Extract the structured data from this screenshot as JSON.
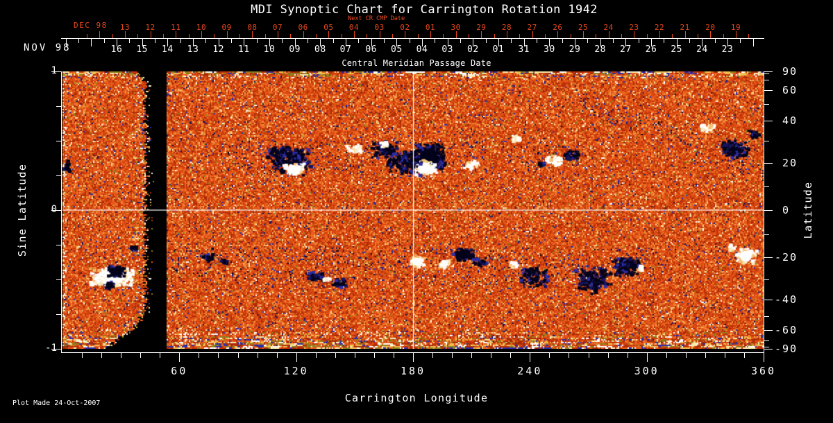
{
  "title": "MDI Synoptic Chart for Carrington Rotation 1942",
  "footer": {
    "plot_made": "Plot Made 24-Oct-2007"
  },
  "colors": {
    "background": "#000000",
    "foreground": "#ffffff",
    "accent_red": "#e8481d"
  },
  "top_axis": {
    "next_cr_label": "Next CR CMP Date",
    "red_month_label": "DEC 98",
    "red_days": [
      "13",
      "12",
      "11",
      "10",
      "09",
      "08",
      "07",
      "06",
      "05",
      "04",
      "03",
      "02",
      "01",
      "30",
      "29",
      "28",
      "27",
      "26",
      "25",
      "24",
      "23",
      "22",
      "21",
      "20",
      "19"
    ],
    "white_month_label": "NOV 98",
    "white_days": [
      "16",
      "15",
      "14",
      "13",
      "12",
      "11",
      "10",
      "09",
      "08",
      "07",
      "06",
      "05",
      "04",
      "03",
      "02",
      "01",
      "31",
      "30",
      "29",
      "28",
      "27",
      "26",
      "25",
      "24",
      "23"
    ],
    "sub_label": "Central Meridian Passage Date"
  },
  "left_axis": {
    "title": "Sine Latitude",
    "major_tick_labels": [
      "1",
      "0",
      "-1"
    ],
    "major_tick_sine": [
      1,
      0,
      -1
    ],
    "minor_tick_sine": [
      0.75,
      0.5,
      0.25,
      -0.25,
      -0.5,
      -0.75
    ]
  },
  "right_axis": {
    "title": "Latitude",
    "major_tick_labels": [
      " 90",
      " 60",
      " 40",
      " 20",
      " 0",
      "-20",
      "-40",
      "-60",
      "-90"
    ],
    "major_tick_lat_deg": [
      90,
      60,
      40,
      20,
      0,
      -20,
      -40,
      -60,
      -90
    ],
    "minor_tick_lat_deg": [
      80,
      70,
      50,
      30,
      10,
      -10,
      -30,
      -50,
      -70,
      -80
    ]
  },
  "bottom_axis": {
    "title": "Carrington Longitude",
    "major_tick_labels": [
      "60",
      "120",
      "180",
      "240",
      "300",
      "360"
    ],
    "major_tick_deg": [
      60,
      120,
      180,
      240,
      300,
      360
    ],
    "minor_step_deg": 10
  },
  "chart_data": {
    "type": "heatmap",
    "title": "MDI Synoptic Chart for Carrington Rotation 1942",
    "xlabel": "Carrington Longitude",
    "ylabel_left": "Sine Latitude",
    "ylabel_right": "Latitude",
    "x_range_deg": [
      0,
      360
    ],
    "y_range_sine_latitude": [
      -1,
      1
    ],
    "grid_lines": {
      "vertical_lon_deg": 180,
      "horizontal_sine_lat": 0
    },
    "data_gap_lon_deg": [
      43,
      53
    ],
    "activity_bands_sine_lat": {
      "north": [
        0.26,
        0.5
      ],
      "south": [
        -0.52,
        -0.27
      ]
    },
    "seed": 1942,
    "palette": {
      "base": [
        [
          "#a62a06",
          0.09
        ],
        [
          "#c43408",
          0.2
        ],
        [
          "#dc4a12",
          0.27
        ],
        [
          "#e95f1d",
          0.18
        ],
        [
          "#ef7b2a",
          0.11
        ],
        [
          "#f29a45",
          0.06
        ],
        [
          "#f4bf6e",
          0.03
        ],
        [
          "#8d7f1e",
          0.015
        ],
        [
          "#f7e9ac",
          0.015
        ],
        [
          "#ffffff",
          0.01
        ],
        [
          "#2d2da6",
          0.014
        ],
        [
          "#15155e",
          0.016
        ]
      ],
      "streak": [
        "#f7e9ac",
        "#efc050",
        "#e95f1d",
        "#c43408",
        "#2d2da6",
        "#ffffff",
        "#8d7f1e",
        "#a62a06"
      ],
      "navy": [
        "#2d2da6",
        "#15155e",
        "#03031c"
      ],
      "negative_core": "#02021a",
      "positive_core": "#ffffff"
    },
    "active_regions": [
      [
        118,
        21,
        "n",
        55,
        40,
        0.5
      ],
      [
        119,
        17,
        "p",
        30,
        16,
        1
      ],
      [
        110,
        24,
        "n",
        28,
        18,
        0.5
      ],
      [
        150,
        26,
        "p",
        24,
        14,
        0.5
      ],
      [
        166,
        26,
        "n",
        40,
        24,
        0.5
      ],
      [
        165,
        28,
        "p",
        14,
        9,
        0.8
      ],
      [
        188,
        22,
        "n",
        48,
        38,
        1
      ],
      [
        186,
        17.5,
        "p",
        32,
        22,
        1
      ],
      [
        176,
        20,
        "n",
        50,
        38,
        0.4
      ],
      [
        210,
        19,
        "p",
        20,
        14,
        0.5
      ],
      [
        233,
        31,
        "p",
        18,
        10,
        0.6
      ],
      [
        253,
        21,
        "p",
        26,
        14,
        0.8
      ],
      [
        261,
        23,
        "n",
        24,
        14,
        0.7
      ],
      [
        246,
        19,
        "n",
        12,
        8,
        0.6
      ],
      [
        331,
        36,
        "p",
        20,
        11,
        0.8
      ],
      [
        346,
        26,
        "n",
        40,
        28,
        0.6
      ],
      [
        355,
        33,
        "n",
        18,
        12,
        0.5
      ],
      [
        2.5,
        18,
        "n",
        9,
        16,
        0.8
      ],
      [
        26,
        -29,
        "p",
        60,
        26,
        1
      ],
      [
        28,
        -26.5,
        "n",
        24,
        18,
        1
      ],
      [
        24,
        -33,
        "n",
        15,
        12,
        1
      ],
      [
        37,
        -16,
        "n",
        11,
        9,
        0.8
      ],
      [
        19,
        -31,
        "p",
        30,
        12,
        0.6
      ],
      [
        75,
        -20,
        "n",
        16,
        10,
        0.7
      ],
      [
        83,
        -22,
        "n",
        10,
        8,
        0.6
      ],
      [
        130,
        -29,
        "n",
        26,
        15,
        0.7
      ],
      [
        142,
        -32,
        "n",
        20,
        12,
        0.6
      ],
      [
        136,
        -30,
        "p",
        12,
        8,
        0.6
      ],
      [
        182,
        -22,
        "p",
        20,
        16,
        0.9
      ],
      [
        196,
        -23,
        "p",
        16,
        12,
        0.9
      ],
      [
        206,
        -18.7,
        "n",
        30,
        18,
        0.9
      ],
      [
        214,
        -22,
        "n",
        20,
        12,
        0.5
      ],
      [
        232,
        -23.6,
        "p",
        12,
        10,
        0.8
      ],
      [
        242,
        -29,
        "n",
        45,
        32,
        0.35
      ],
      [
        273,
        -30.5,
        "n",
        50,
        38,
        0.4
      ],
      [
        290,
        -24,
        "n",
        40,
        28,
        0.6
      ],
      [
        297,
        -25,
        "p",
        10,
        8,
        0.6
      ],
      [
        351,
        -19.5,
        "p",
        30,
        22,
        0.9
      ],
      [
        344,
        -16,
        "p",
        12,
        9,
        0.6
      ]
    ]
  }
}
